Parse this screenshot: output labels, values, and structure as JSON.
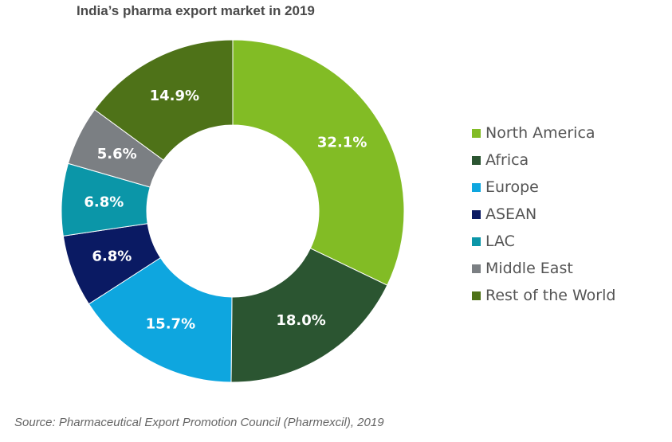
{
  "chart_data": {
    "type": "pie",
    "variant": "donut",
    "title": "India’s pharma export market in 2019",
    "categories": [
      "North America",
      "Africa",
      "Europe",
      "ASEAN",
      "LAC",
      "Middle East",
      "Rest of the World"
    ],
    "values": [
      32.1,
      18.0,
      15.7,
      6.8,
      6.8,
      5.6,
      14.9
    ],
    "labels": [
      "32.1%",
      "18.0%",
      "15.7%",
      "6.8%",
      "6.8%",
      "5.6%",
      "14.9%"
    ],
    "colors": [
      "#82bc25",
      "#2b5531",
      "#0ea6df",
      "#0a1a63",
      "#0b96a8",
      "#7b7f83",
      "#4e7218"
    ],
    "legend_position": "right",
    "source": "Source: Pharmaceutical Export Promotion Council (Pharmexcil), 2019"
  }
}
